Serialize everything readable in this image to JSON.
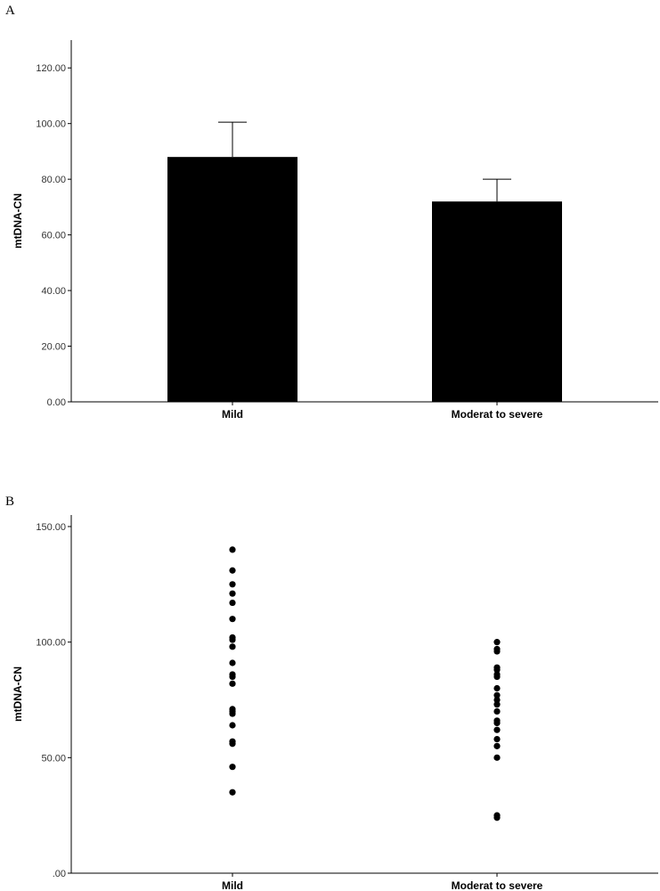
{
  "chart_data": [
    {
      "panel": "A",
      "type": "bar",
      "categories": [
        "Mild",
        "Moderat to severe"
      ],
      "values": [
        88,
        72
      ],
      "error_upper": [
        100.5,
        80
      ],
      "ylabel": "mtDNA-CN",
      "ylim": [
        0,
        130
      ],
      "yticks": [
        "0.00",
        "20.00",
        "40.00",
        "60.00",
        "80.00",
        "100.00",
        "120.00"
      ],
      "ytick_values": [
        0,
        20,
        40,
        60,
        80,
        100,
        120
      ],
      "bar_color": "#000000",
      "grid": false
    },
    {
      "panel": "B",
      "type": "scatter",
      "categories": [
        "Mild",
        "Moderat to severe"
      ],
      "series": [
        {
          "category": "Mild",
          "values": [
            140,
            131,
            125,
            121,
            117,
            110,
            102,
            101,
            98,
            91,
            86,
            85,
            82,
            71,
            70,
            69,
            64,
            57,
            56,
            46,
            35
          ]
        },
        {
          "category": "Moderat to severe",
          "values": [
            100,
            97,
            96,
            89,
            88,
            86,
            85,
            80,
            77,
            75,
            73,
            70,
            66,
            65,
            62,
            58,
            55,
            50,
            25,
            24
          ]
        }
      ],
      "ylabel": "mtDNA-CN",
      "ylim": [
        0,
        155
      ],
      "yticks": [
        ".00",
        "50.00",
        "100.00",
        "150.00"
      ],
      "ytick_values": [
        0,
        50,
        100,
        150
      ],
      "marker_color": "#000000",
      "grid": false
    }
  ]
}
